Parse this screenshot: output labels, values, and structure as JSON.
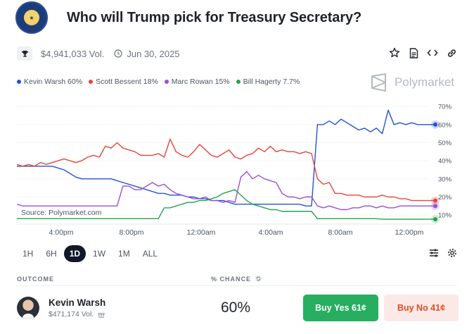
{
  "market": {
    "title": "Who will Trump pick for Treasury Secretary?",
    "volume": "$4,941,033 Vol.",
    "end_date": "Jun 30, 2025"
  },
  "legend": [
    {
      "label": "Kevin Warsh 60%",
      "color": "#2453d4"
    },
    {
      "label": "Scott Bessent 18%",
      "color": "#e8453c"
    },
    {
      "label": "Marc Rowan 15%",
      "color": "#9b4fd8"
    },
    {
      "label": "Bill Hagerty 7.7%",
      "color": "#27a34b"
    }
  ],
  "brand": {
    "name": "Polymarket"
  },
  "chart_data": {
    "type": "line",
    "x_tick_labels": [
      "4:00pm",
      "8:00pm",
      "12:00am",
      "4:00am",
      "8:00am",
      "12:00pm"
    ],
    "y_tick_labels": [
      "70%",
      "60%",
      "50%",
      "40%",
      "30%",
      "20%",
      "10%"
    ],
    "ylim": [
      5,
      72
    ],
    "y_ticks": [
      70,
      60,
      50,
      40,
      30,
      20,
      10
    ],
    "grid": true,
    "source": "Source: Polymarket.com",
    "series": [
      {
        "name": "Kevin Warsh",
        "color": "#2453d4",
        "values": [
          37,
          37,
          37,
          37,
          37,
          37,
          37,
          36,
          35,
          33,
          31,
          30,
          30,
          30,
          30,
          30,
          30,
          29,
          28,
          27,
          26,
          25,
          24,
          23,
          22,
          22,
          21,
          21,
          21,
          20,
          20,
          19,
          19,
          18,
          18,
          18,
          17,
          16,
          16,
          16,
          16,
          16,
          16,
          16,
          16,
          16,
          16,
          16,
          16,
          15,
          15,
          60,
          60,
          62,
          60,
          63,
          61,
          59,
          57,
          58,
          56,
          58,
          55,
          68,
          60,
          61,
          60,
          61,
          60,
          60,
          60,
          60
        ]
      },
      {
        "name": "Scott Bessent",
        "color": "#e8453c",
        "values": [
          38,
          37,
          38,
          37,
          39,
          38,
          39,
          40,
          41,
          40,
          39,
          40,
          42,
          43,
          42,
          48,
          47,
          50,
          47,
          46,
          45,
          43,
          43,
          43,
          44,
          42,
          52,
          45,
          43,
          42,
          45,
          49,
          46,
          43,
          42,
          44,
          46,
          42,
          41,
          43,
          44,
          47,
          45,
          48,
          45,
          46,
          45,
          45,
          44,
          45,
          44,
          30,
          27,
          28,
          22,
          22,
          21,
          21,
          21,
          20,
          20,
          20,
          21,
          20,
          20,
          19,
          19,
          18,
          18,
          18,
          18,
          18
        ]
      },
      {
        "name": "Marc Rowan",
        "color": "#9b4fd8",
        "values": [
          16,
          15,
          15,
          15,
          15,
          15,
          15,
          15,
          15,
          15,
          15,
          15,
          15,
          15,
          15,
          15,
          15,
          15,
          26,
          26,
          24,
          24,
          26,
          28,
          26,
          27,
          24,
          22,
          21,
          20,
          19,
          19,
          20,
          18,
          18,
          17,
          18,
          17,
          31,
          34,
          30,
          32,
          30,
          29,
          28,
          22,
          20,
          20,
          19,
          20,
          20,
          15,
          14,
          15,
          14,
          13,
          13,
          14,
          14,
          15,
          15,
          14,
          15,
          14,
          14,
          15,
          15,
          15,
          15,
          15,
          15,
          15
        ]
      },
      {
        "name": "Bill Hagerty",
        "color": "#27a34b",
        "values": [
          8,
          8,
          8,
          8,
          8,
          8,
          8,
          8,
          8,
          8,
          8,
          8,
          8,
          8,
          8,
          8,
          8,
          8,
          8,
          8,
          8,
          8,
          8,
          8,
          8,
          14,
          14,
          15,
          16,
          17,
          17,
          18,
          18,
          19,
          20,
          22,
          23,
          24,
          21,
          18,
          16,
          15,
          14,
          13,
          13,
          12,
          12,
          12,
          12,
          12,
          12,
          8,
          8,
          8,
          8,
          8,
          8,
          8,
          8,
          8,
          8,
          8,
          7.7,
          7.7,
          7.7,
          7.7,
          7.7,
          7.7,
          7.7,
          7.7,
          7.7,
          7.7
        ]
      }
    ]
  },
  "ranges": [
    {
      "label": "1H",
      "active": false
    },
    {
      "label": "6H",
      "active": false
    },
    {
      "label": "1D",
      "active": true
    },
    {
      "label": "1W",
      "active": false
    },
    {
      "label": "1M",
      "active": false
    },
    {
      "label": "ALL",
      "active": false
    }
  ],
  "table": {
    "outcome_header": "OUTCOME",
    "chance_header": "% CHANCE",
    "rows": [
      {
        "name": "Kevin Warsh",
        "volume": "$471,174 Vol.",
        "chance": "60%",
        "yes_label": "Buy Yes 61¢",
        "no_label": "Buy No 41¢"
      }
    ]
  },
  "icons": {
    "trophy": "trophy-icon",
    "clock": "clock-icon",
    "star": "star-icon",
    "document": "document-icon",
    "embed": "code-icon",
    "link": "link-icon",
    "filter": "sliders-icon",
    "settings": "gear-icon",
    "refresh": "refresh-icon",
    "gift": "gift-icon"
  }
}
